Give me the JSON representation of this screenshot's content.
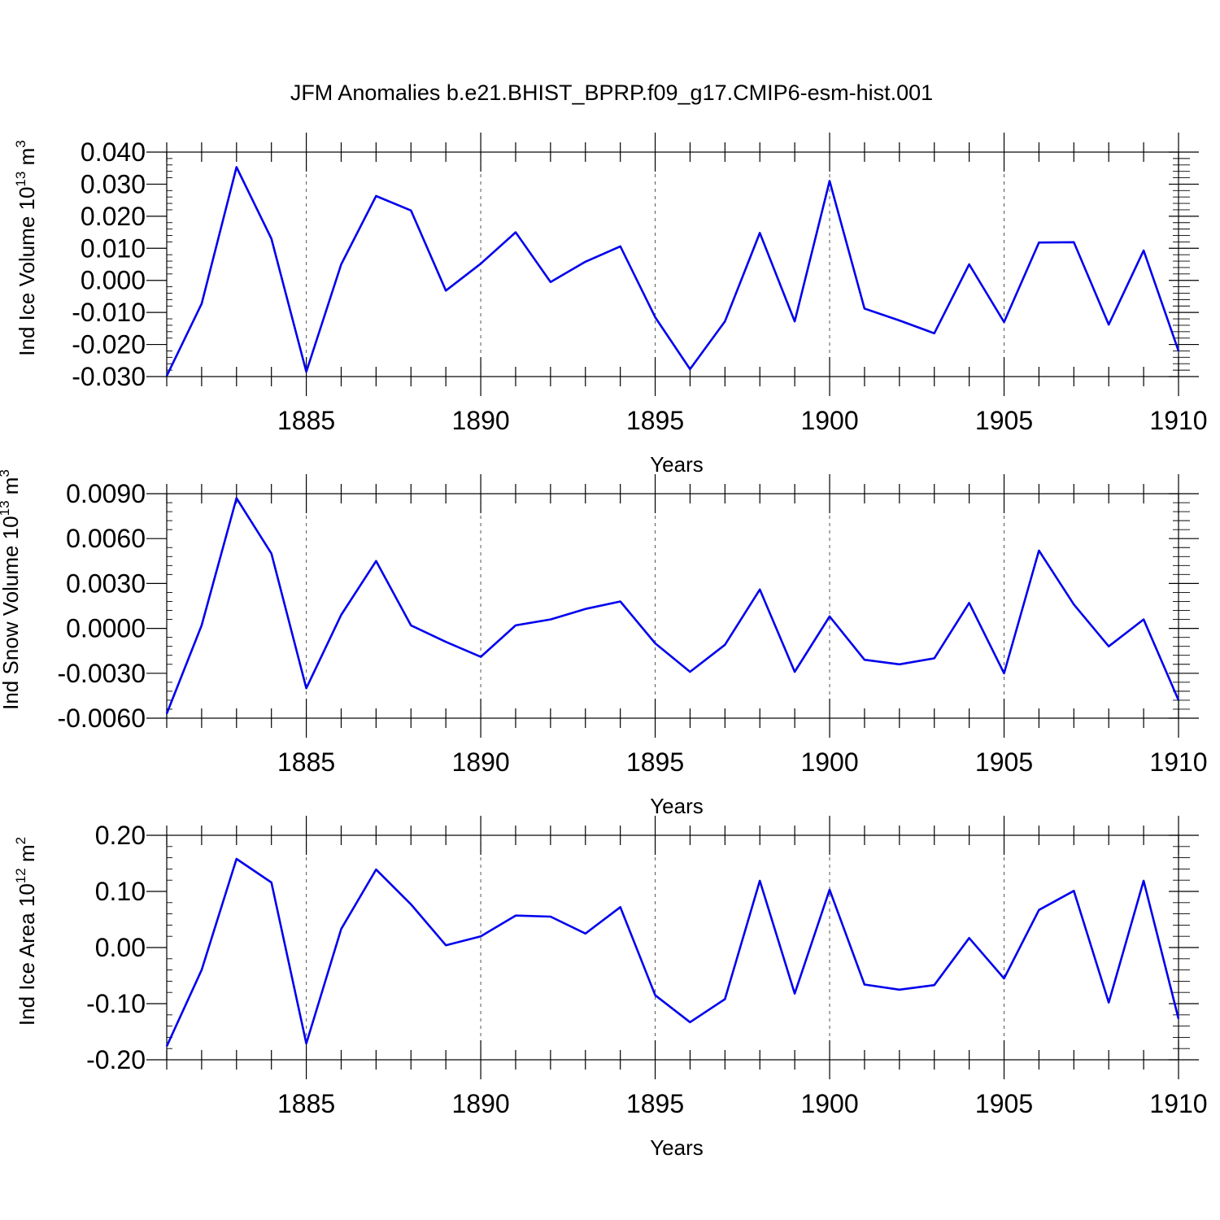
{
  "title": "JFM Anomalies b.e21.BHIST_BPRP.f09_g17.CMIP6-esm-hist.001",
  "line_color": "#0000ee",
  "chart_data": [
    {
      "type": "line",
      "ylabel": {
        "main": "Ind Ice Volume 10",
        "sup1": "13",
        "mid": " m",
        "sup2": "3"
      },
      "xlabel": "Years",
      "xlim": [
        1881,
        1910
      ],
      "ylim": [
        -0.03,
        0.04
      ],
      "xticks": [
        1885,
        1890,
        1895,
        1900,
        1905,
        1910
      ],
      "yticks": [
        -0.03,
        -0.02,
        -0.01,
        0.0,
        0.01,
        0.02,
        0.03,
        0.04
      ],
      "ytick_labels": [
        "-0.030",
        "-0.020",
        "-0.010",
        "0.000",
        "0.010",
        "0.020",
        "0.030",
        "0.040"
      ],
      "grid": "x-dashed",
      "series": [
        {
          "x": [
            1881,
            1882,
            1883,
            1884,
            1885,
            1886,
            1887,
            1888,
            1889,
            1890,
            1891,
            1892,
            1893,
            1894,
            1895,
            1896,
            1897,
            1898,
            1899,
            1900,
            1901,
            1902,
            1903,
            1904,
            1905,
            1906,
            1907,
            1908,
            1909,
            1910
          ],
          "values": [
            -0.0298,
            -0.0073,
            0.0353,
            0.013,
            -0.0285,
            0.005,
            0.0263,
            0.0218,
            -0.0032,
            0.0052,
            0.015,
            -0.0005,
            0.0058,
            0.0106,
            -0.0115,
            -0.0277,
            -0.0128,
            0.0148,
            -0.0128,
            0.031,
            -0.0088,
            -0.0125,
            -0.0165,
            0.005,
            -0.013,
            0.0118,
            0.0119,
            -0.0138,
            0.0093,
            -0.022
          ]
        }
      ]
    },
    {
      "type": "line",
      "ylabel": {
        "main": "Ind Snow Volume 10",
        "sup1": "13",
        "mid": " m",
        "sup2": "3"
      },
      "xlabel": "Years",
      "xlim": [
        1881,
        1910
      ],
      "ylim": [
        -0.006,
        0.009
      ],
      "xticks": [
        1885,
        1890,
        1895,
        1900,
        1905,
        1910
      ],
      "yticks": [
        -0.006,
        -0.003,
        0.0,
        0.003,
        0.006,
        0.009
      ],
      "ytick_labels": [
        "-0.0060",
        "-0.0030",
        "0.0000",
        "0.0030",
        "0.0060",
        "0.0090"
      ],
      "grid": "x-dashed",
      "series": [
        {
          "x": [
            1881,
            1882,
            1883,
            1884,
            1885,
            1886,
            1887,
            1888,
            1889,
            1890,
            1891,
            1892,
            1893,
            1894,
            1895,
            1896,
            1897,
            1898,
            1899,
            1900,
            1901,
            1902,
            1903,
            1904,
            1905,
            1906,
            1907,
            1908,
            1909,
            1910
          ],
          "values": [
            -0.0057,
            0.0002,
            0.0087,
            0.005,
            -0.004,
            0.0009,
            0.0045,
            0.0002,
            -0.0009,
            -0.0019,
            0.0002,
            0.0006,
            0.0013,
            0.0018,
            -0.001,
            -0.0029,
            -0.0011,
            0.0026,
            -0.0029,
            0.0008,
            -0.0021,
            -0.0024,
            -0.002,
            0.0017,
            -0.003,
            0.0052,
            0.0016,
            -0.0012,
            0.0006,
            -0.0048
          ]
        }
      ]
    },
    {
      "type": "line",
      "ylabel": {
        "main": "Ind Ice Area 10",
        "sup1": "12",
        "mid": " m",
        "sup2": "2"
      },
      "xlabel": "Years",
      "xlim": [
        1881,
        1910
      ],
      "ylim": [
        -0.2,
        0.2
      ],
      "xticks": [
        1885,
        1890,
        1895,
        1900,
        1905,
        1910
      ],
      "yticks": [
        -0.2,
        -0.1,
        0.0,
        0.1,
        0.2
      ],
      "ytick_labels": [
        "-0.20",
        "-0.10",
        "0.00",
        "0.10",
        "0.20"
      ],
      "grid": "x-dashed",
      "series": [
        {
          "x": [
            1881,
            1882,
            1883,
            1884,
            1885,
            1886,
            1887,
            1888,
            1889,
            1890,
            1891,
            1892,
            1893,
            1894,
            1895,
            1896,
            1897,
            1898,
            1899,
            1900,
            1901,
            1902,
            1903,
            1904,
            1905,
            1906,
            1907,
            1908,
            1909,
            1910
          ],
          "values": [
            -0.176,
            -0.04,
            0.158,
            0.116,
            -0.171,
            0.033,
            0.139,
            0.077,
            0.004,
            0.02,
            0.057,
            0.055,
            0.025,
            0.072,
            -0.085,
            -0.133,
            -0.092,
            0.119,
            -0.082,
            0.103,
            -0.066,
            -0.075,
            -0.067,
            0.017,
            -0.055,
            0.067,
            0.101,
            -0.098,
            0.119,
            -0.127
          ]
        }
      ]
    }
  ]
}
